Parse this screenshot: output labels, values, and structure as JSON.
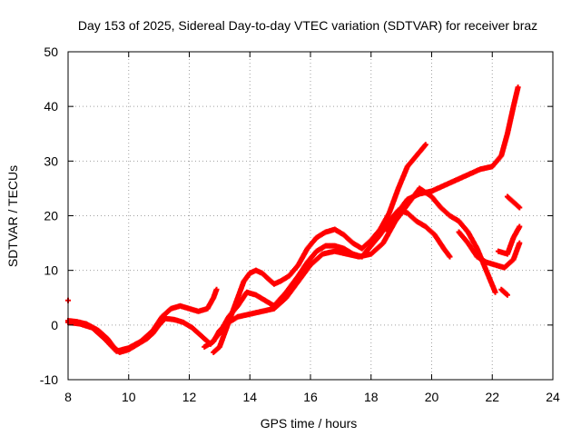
{
  "chart_data": {
    "type": "scatter",
    "title": "Day 153 of 2025, Sidereal Day-to-day VTEC variation (SDTVAR) for receiver braz",
    "xlabel": "GPS time / hours",
    "ylabel": "SDTVAR / TECUs",
    "xlim": [
      8,
      24
    ],
    "ylim": [
      -10,
      50
    ],
    "xticks": [
      8,
      10,
      12,
      14,
      16,
      18,
      20,
      22,
      24
    ],
    "yticks": [
      -10,
      0,
      10,
      20,
      30,
      40,
      50
    ],
    "xtick_labels": [
      "8",
      "10",
      "12",
      "14",
      "16",
      "18",
      "20",
      "22",
      "24"
    ],
    "ytick_labels": [
      "-10",
      "0",
      "10",
      "20",
      "30",
      "40",
      "50"
    ],
    "grid": true,
    "marker": "+",
    "color": "#ff0000",
    "series": [
      {
        "points": [
          [
            8.0,
            0.8
          ],
          [
            8.3,
            0.6
          ],
          [
            8.6,
            0.2
          ],
          [
            9.0,
            -1.0
          ],
          [
            9.3,
            -2.5
          ],
          [
            9.5,
            -4.0
          ],
          [
            9.7,
            -5.0
          ],
          [
            10.0,
            -4.5
          ],
          [
            10.3,
            -3.5
          ],
          [
            10.6,
            -2.5
          ],
          [
            10.8,
            -1.5
          ],
          [
            11.0,
            0.0
          ],
          [
            11.2,
            1.2
          ],
          [
            11.5,
            1.0
          ],
          [
            11.8,
            0.5
          ],
          [
            12.1,
            -0.5
          ],
          [
            12.4,
            -2.0
          ],
          [
            12.7,
            -3.5
          ],
          [
            13.0,
            -1.5
          ],
          [
            13.3,
            1.5
          ],
          [
            13.6,
            3.5
          ],
          [
            13.9,
            6.0
          ],
          [
            14.2,
            5.5
          ],
          [
            14.5,
            4.5
          ],
          [
            14.8,
            3.5
          ],
          [
            15.2,
            6.0
          ],
          [
            15.6,
            9.0
          ],
          [
            15.9,
            11.5
          ],
          [
            16.2,
            13.5
          ],
          [
            16.5,
            14.5
          ],
          [
            16.8,
            14.5
          ],
          [
            17.1,
            14.0
          ],
          [
            17.4,
            13.0
          ],
          [
            17.7,
            12.5
          ],
          [
            18.0,
            14.5
          ],
          [
            18.3,
            16.5
          ],
          [
            18.6,
            19.0
          ],
          [
            18.9,
            21.0
          ],
          [
            19.2,
            20.5
          ],
          [
            19.5,
            19.0
          ],
          [
            19.8,
            18.0
          ],
          [
            20.1,
            16.5
          ],
          [
            20.4,
            14.0
          ],
          [
            20.6,
            12.5
          ]
        ]
      },
      {
        "points": [
          [
            12.8,
            -5.0
          ],
          [
            13.0,
            -4.0
          ],
          [
            13.2,
            -1.0
          ],
          [
            13.4,
            2.0
          ],
          [
            13.6,
            5.0
          ],
          [
            13.8,
            8.0
          ],
          [
            14.0,
            9.5
          ],
          [
            14.2,
            10.0
          ],
          [
            14.4,
            9.5
          ],
          [
            14.6,
            8.5
          ],
          [
            14.8,
            7.5
          ],
          [
            15.0,
            8.0
          ],
          [
            15.3,
            9.0
          ],
          [
            15.6,
            11.0
          ],
          [
            15.9,
            14.0
          ],
          [
            16.2,
            16.0
          ],
          [
            16.5,
            17.0
          ],
          [
            16.8,
            17.5
          ],
          [
            17.1,
            16.5
          ],
          [
            17.4,
            15.0
          ],
          [
            17.7,
            14.0
          ],
          [
            18.0,
            15.5
          ],
          [
            18.3,
            17.5
          ],
          [
            18.6,
            20.5
          ],
          [
            18.9,
            25.0
          ],
          [
            19.2,
            29.0
          ],
          [
            19.5,
            31.0
          ],
          [
            19.8,
            33.0
          ]
        ]
      },
      {
        "points": [
          [
            8.0,
            0.5
          ],
          [
            8.4,
            0.2
          ],
          [
            8.8,
            -0.5
          ],
          [
            9.2,
            -2.5
          ],
          [
            9.6,
            -4.8
          ],
          [
            10.0,
            -4.2
          ],
          [
            10.4,
            -3.0
          ],
          [
            10.8,
            -1.0
          ],
          [
            11.1,
            1.5
          ],
          [
            11.4,
            3.0
          ],
          [
            11.7,
            3.5
          ],
          [
            12.0,
            3.0
          ],
          [
            12.3,
            2.5
          ],
          [
            12.6,
            3.0
          ],
          [
            12.8,
            5.0
          ],
          [
            12.9,
            6.5
          ]
        ]
      },
      {
        "points": [
          [
            12.5,
            -4.0
          ],
          [
            12.8,
            -3.0
          ],
          [
            13.0,
            -1.0
          ],
          [
            13.3,
            0.5
          ],
          [
            13.6,
            1.5
          ],
          [
            14.0,
            2.0
          ],
          [
            14.4,
            2.5
          ],
          [
            14.8,
            3.0
          ],
          [
            15.2,
            5.0
          ],
          [
            15.6,
            8.0
          ],
          [
            16.0,
            11.0
          ],
          [
            16.4,
            13.0
          ],
          [
            16.8,
            13.5
          ],
          [
            17.2,
            13.0
          ],
          [
            17.6,
            12.5
          ],
          [
            18.0,
            13.0
          ],
          [
            18.4,
            15.0
          ],
          [
            18.8,
            19.0
          ],
          [
            19.2,
            22.0
          ],
          [
            19.6,
            25.0
          ],
          [
            20.0,
            23.5
          ],
          [
            20.3,
            21.5
          ],
          [
            20.6,
            20.0
          ],
          [
            20.9,
            19.0
          ],
          [
            21.2,
            17.0
          ],
          [
            21.5,
            14.0
          ],
          [
            21.8,
            10.0
          ],
          [
            22.1,
            6.0
          ]
        ]
      },
      {
        "points": [
          [
            18.5,
            17.5
          ],
          [
            18.8,
            20.0
          ],
          [
            19.2,
            23.0
          ],
          [
            19.6,
            24.0
          ],
          [
            20.0,
            24.5
          ],
          [
            20.4,
            25.5
          ],
          [
            20.8,
            26.5
          ],
          [
            21.2,
            27.5
          ],
          [
            21.6,
            28.5
          ],
          [
            22.0,
            29.0
          ],
          [
            22.3,
            31.0
          ],
          [
            22.5,
            35.0
          ],
          [
            22.7,
            40.0
          ],
          [
            22.85,
            43.5
          ]
        ]
      },
      {
        "points": [
          [
            20.9,
            17.0
          ],
          [
            21.2,
            15.0
          ],
          [
            21.5,
            12.5
          ],
          [
            21.8,
            11.5
          ],
          [
            22.1,
            11.0
          ],
          [
            22.4,
            10.5
          ],
          [
            22.7,
            12.0
          ],
          [
            22.9,
            15.0
          ]
        ]
      },
      {
        "points": [
          [
            22.2,
            13.5
          ],
          [
            22.5,
            13.0
          ],
          [
            22.7,
            16.0
          ],
          [
            22.9,
            18.0
          ]
        ]
      },
      {
        "points": [
          [
            22.5,
            23.5
          ],
          [
            22.7,
            22.5
          ],
          [
            22.9,
            21.5
          ]
        ]
      },
      {
        "points": [
          [
            22.3,
            6.5
          ],
          [
            22.5,
            5.5
          ]
        ]
      },
      {
        "points": [
          [
            8.0,
            4.5
          ]
        ]
      }
    ]
  }
}
